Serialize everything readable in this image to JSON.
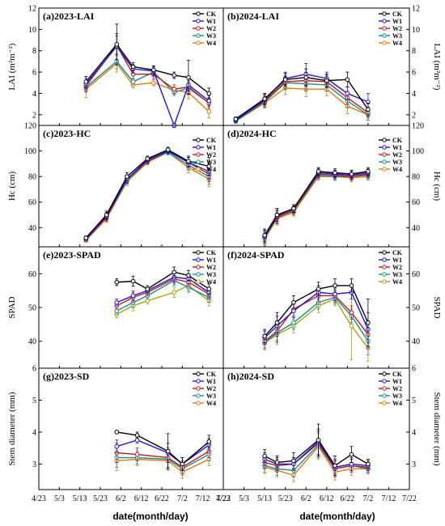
{
  "figure": {
    "xlabel": "date(month/day)",
    "x_ticks": [
      "4/23",
      "5/3",
      "5/13",
      "5/23",
      "6/2",
      "6/12",
      "6/22",
      "7/2",
      "7/12",
      "7/22"
    ]
  },
  "series_colors": {
    "CK": "#000000",
    "W1": "#1a14e0",
    "W2": "#c0191a",
    "W3": "#138e8e",
    "W4": "#e07b0c",
    "W4_spad": "#a6a60e"
  },
  "chart_data": [
    {
      "type": "line",
      "title": "(a)2023-LAI",
      "ylabel": "LAI (m²m⁻²)",
      "y_side": "left",
      "ylim": [
        1,
        12
      ],
      "yticks": [
        2,
        4,
        6,
        8,
        10,
        12
      ],
      "x": [
        "5/16",
        "5/31",
        "6/8",
        "6/18",
        "6/28",
        "7/5",
        "7/15"
      ],
      "series": [
        {
          "name": "CK",
          "values": [
            5.1,
            8.6,
            6.5,
            6.2,
            5.7,
            5.5,
            4.0
          ],
          "err": [
            0.5,
            1.9,
            0.4,
            0.4,
            0.3,
            1.6,
            0.5
          ]
        },
        {
          "name": "W1",
          "values": [
            4.9,
            8.4,
            6.3,
            6.1,
            1.0,
            4.8,
            3.3
          ],
          "err": [
            0.5,
            1.2,
            0.4,
            0.4,
            0.2,
            0.6,
            0.5
          ]
        },
        {
          "name": "W2",
          "values": [
            4.7,
            8.5,
            5.8,
            5.8,
            4.4,
            4.6,
            3.1
          ],
          "err": [
            0.5,
            0.9,
            0.4,
            0.4,
            0.4,
            0.6,
            0.5
          ]
        },
        {
          "name": "W3",
          "values": [
            4.6,
            7.0,
            5.1,
            6.0,
            4.1,
            4.5,
            3.1
          ],
          "err": [
            0.5,
            0.7,
            0.3,
            0.4,
            0.3,
            0.6,
            0.5
          ]
        },
        {
          "name": "W4",
          "values": [
            4.4,
            6.8,
            4.8,
            5.0,
            4.3,
            4.1,
            2.3
          ],
          "err": [
            0.8,
            0.8,
            0.3,
            0.3,
            0.3,
            0.6,
            0.6
          ]
        }
      ],
      "legend": "top-right"
    },
    {
      "type": "line",
      "title": "(b)2024-LAI",
      "ylabel": "LAI (m²m⁻²)",
      "y_side": "right",
      "ylim": [
        1,
        12
      ],
      "yticks": [
        2,
        4,
        6,
        8,
        10,
        12
      ],
      "x": [
        "4/29",
        "5/13",
        "5/23",
        "6/2",
        "6/12",
        "6/22",
        "7/2"
      ],
      "series": [
        {
          "name": "CK",
          "values": [
            1.6,
            3.5,
            5.3,
            5.5,
            5.2,
            5.3,
            2.5
          ],
          "err": [
            0.2,
            0.5,
            0.6,
            0.8,
            0.6,
            0.7,
            0.6
          ]
        },
        {
          "name": "W1",
          "values": [
            1.5,
            3.4,
            5.4,
            5.8,
            5.4,
            4.0,
            3.2
          ],
          "err": [
            0.2,
            0.5,
            0.6,
            1.0,
            0.6,
            0.6,
            0.8
          ]
        },
        {
          "name": "W2",
          "values": [
            1.5,
            3.3,
            5.1,
            5.2,
            5.1,
            3.6,
            2.2
          ],
          "err": [
            0.2,
            0.5,
            0.6,
            0.8,
            0.6,
            0.6,
            0.5
          ]
        },
        {
          "name": "W3",
          "values": [
            1.4,
            3.2,
            5.0,
            4.9,
            4.8,
            3.3,
            2.0
          ],
          "err": [
            0.2,
            0.5,
            0.6,
            0.7,
            0.6,
            0.6,
            0.5
          ]
        },
        {
          "name": "W4",
          "values": [
            1.4,
            3.1,
            4.5,
            4.4,
            4.4,
            2.8,
            2.0
          ],
          "err": [
            0.2,
            0.5,
            0.6,
            0.7,
            0.6,
            0.7,
            0.5
          ]
        }
      ],
      "legend": "top-right"
    },
    {
      "type": "line",
      "title": "(c)2023-HC",
      "ylabel": "Hc (cm)",
      "y_side": "left",
      "ylim": [
        25,
        120
      ],
      "yticks": [
        40,
        60,
        80,
        100,
        120
      ],
      "x": [
        "5/16",
        "5/26",
        "6/5",
        "6/15",
        "6/25",
        "7/5",
        "7/15"
      ],
      "series": [
        {
          "name": "CK",
          "values": [
            32,
            50,
            80,
            94,
            101,
            92,
            88
          ],
          "err": [
            1.5,
            3,
            3,
            2,
            2,
            4,
            7
          ]
        },
        {
          "name": "W1",
          "values": [
            31,
            49,
            78,
            93,
            100,
            91,
            84
          ],
          "err": [
            1.5,
            3,
            3,
            2,
            2,
            4,
            6
          ]
        },
        {
          "name": "W2",
          "values": [
            31,
            48,
            78,
            92,
            100,
            91,
            82
          ],
          "err": [
            1.5,
            3,
            3,
            2,
            2,
            4,
            6
          ]
        },
        {
          "name": "W3",
          "values": [
            31,
            48,
            77,
            92,
            99,
            89,
            80
          ],
          "err": [
            1.5,
            3,
            3,
            2,
            2,
            4,
            6
          ]
        },
        {
          "name": "W4",
          "values": [
            30,
            47,
            76,
            91,
            99,
            87,
            78
          ],
          "err": [
            1.5,
            3,
            3,
            2,
            2,
            4,
            6
          ]
        }
      ],
      "legend": "bottom-right"
    },
    {
      "type": "line",
      "title": "(d)2024-HC",
      "ylabel": "Hc (cm)",
      "y_side": "right",
      "ylim": [
        25,
        120
      ],
      "yticks": [
        40,
        60,
        80,
        100,
        120
      ],
      "x": [
        "5/13",
        "5/19",
        "5/27",
        "6/8",
        "6/16",
        "6/24",
        "7/2"
      ],
      "series": [
        {
          "name": "CK",
          "values": [
            34,
            50,
            55,
            84,
            83,
            82,
            84
          ],
          "err": [
            5,
            5,
            3,
            3,
            3,
            3,
            3
          ]
        },
        {
          "name": "W1",
          "values": [
            33,
            49,
            55,
            83,
            82,
            81,
            83
          ],
          "err": [
            5,
            5,
            3,
            3,
            3,
            3,
            3
          ]
        },
        {
          "name": "W2",
          "values": [
            33,
            48,
            54,
            82,
            81,
            80,
            82
          ],
          "err": [
            5,
            5,
            3,
            3,
            3,
            3,
            3
          ]
        },
        {
          "name": "W3",
          "values": [
            32,
            48,
            53,
            81,
            80,
            80,
            81
          ],
          "err": [
            5,
            5,
            3,
            3,
            3,
            3,
            3
          ]
        },
        {
          "name": "W4",
          "values": [
            31,
            47,
            52,
            80,
            80,
            79,
            80
          ],
          "err": [
            5,
            5,
            3,
            3,
            3,
            3,
            3
          ]
        }
      ],
      "legend": "bottom-right"
    },
    {
      "type": "line",
      "title": "(e)2023-SPAD",
      "ylabel": "SPAD",
      "y_side": "left",
      "ylim": [
        32,
        68
      ],
      "yticks": [
        40,
        50,
        60
      ],
      "x": [
        "5/31",
        "6/8",
        "6/15",
        "6/28",
        "7/5",
        "7/15"
      ],
      "series": [
        {
          "name": "CK",
          "values": [
            57.5,
            57.8,
            55.5,
            60.5,
            59.5,
            55.5
          ],
          "err": [
            1,
            1.5,
            1,
            1.5,
            1.5,
            1.5
          ]
        },
        {
          "name": "W1",
          "values": [
            51.5,
            53.5,
            55.0,
            59.0,
            58.5,
            54.5
          ],
          "err": [
            1,
            1.5,
            1,
            1.5,
            1.5,
            1.5
          ]
        },
        {
          "name": "W2",
          "values": [
            50.5,
            53.0,
            54.5,
            58.5,
            57.5,
            54.0
          ],
          "err": [
            1,
            1.5,
            1,
            1.5,
            1.5,
            1.5
          ]
        },
        {
          "name": "W3",
          "values": [
            49.0,
            51.5,
            53.5,
            58.0,
            56.0,
            53.0
          ],
          "err": [
            1,
            1.5,
            1,
            1.5,
            1.5,
            1.5
          ]
        },
        {
          "name": "W4",
          "values": [
            48.0,
            50.5,
            52.0,
            54.5,
            56.5,
            52.0
          ],
          "err": [
            1,
            1.5,
            1,
            1.5,
            1.5,
            1.5
          ]
        }
      ],
      "legend": "top-right"
    },
    {
      "type": "line",
      "title": "(f)2024-SPAD",
      "ylabel": "SPAD",
      "y_side": "right",
      "ylim": [
        32,
        68
      ],
      "yticks": [
        40,
        50,
        60
      ],
      "x": [
        "5/13",
        "5/19",
        "5/27",
        "6/8",
        "6/16",
        "6/24",
        "7/2"
      ],
      "series": [
        {
          "name": "CK",
          "values": [
            41.5,
            45.5,
            51.5,
            55.5,
            56.5,
            56.5,
            45.5
          ],
          "err": [
            2,
            3,
            2,
            2,
            2,
            2,
            7
          ]
        },
        {
          "name": "W1",
          "values": [
            41.0,
            44.5,
            49.0,
            54.5,
            54.0,
            54.5,
            43.5
          ],
          "err": [
            2,
            3,
            2,
            2,
            2,
            2,
            5
          ]
        },
        {
          "name": "W2",
          "values": [
            40.0,
            43.0,
            49.5,
            53.5,
            53.5,
            48.5,
            42.0
          ],
          "err": [
            2,
            3,
            2,
            2,
            2,
            2,
            4
          ]
        },
        {
          "name": "W3",
          "values": [
            39.5,
            42.5,
            45.5,
            51.5,
            53.0,
            47.5,
            40.0
          ],
          "err": [
            2,
            3,
            2,
            2,
            2,
            2,
            4
          ]
        },
        {
          "name": "W4",
          "values": [
            39.5,
            42.0,
            44.5,
            50.5,
            52.5,
            44.5,
            38.0
          ],
          "err": [
            2,
            3,
            2,
            2,
            2,
            10,
            4
          ]
        }
      ],
      "legend": "top-right"
    },
    {
      "type": "line",
      "title": "(g)2023-SD",
      "ylabel": "Stem diameter (mm)",
      "y_side": "left",
      "ylim": [
        2.2,
        6
      ],
      "yticks": [
        3,
        4,
        5,
        6
      ],
      "x": [
        "5/31",
        "6/10",
        "6/25",
        "7/2",
        "7/15"
      ],
      "series": [
        {
          "name": "CK",
          "values": [
            4.0,
            3.9,
            3.4,
            3.0,
            3.7
          ],
          "err": [
            0.05,
            0.1,
            0.55,
            0.2,
            0.2
          ]
        },
        {
          "name": "W1",
          "values": [
            3.55,
            3.75,
            3.35,
            3.0,
            3.6
          ],
          "err": [
            0.2,
            0.1,
            0.3,
            0.2,
            0.2
          ]
        },
        {
          "name": "W2",
          "values": [
            3.35,
            3.3,
            3.2,
            2.9,
            3.4
          ],
          "err": [
            0.3,
            0.2,
            0.3,
            0.2,
            0.2
          ]
        },
        {
          "name": "W3",
          "values": [
            3.2,
            3.2,
            3.15,
            2.85,
            3.3
          ],
          "err": [
            0.3,
            0.2,
            0.3,
            0.2,
            0.2
          ]
        },
        {
          "name": "W4",
          "values": [
            3.1,
            3.15,
            3.1,
            2.75,
            3.15
          ],
          "err": [
            0.3,
            0.2,
            0.3,
            0.2,
            0.2
          ]
        }
      ],
      "legend": "top-right"
    },
    {
      "type": "line",
      "title": "(h)2024-SD",
      "ylabel": "Stem diameter (mm)",
      "y_side": "right",
      "ylim": [
        2.2,
        6
      ],
      "yticks": [
        3,
        4,
        5,
        6
      ],
      "x": [
        "5/13",
        "5/19",
        "5/27",
        "6/8",
        "6/16",
        "6/24",
        "7/2"
      ],
      "series": [
        {
          "name": "CK",
          "values": [
            3.25,
            3.05,
            3.1,
            3.75,
            2.95,
            3.3,
            3.0
          ],
          "err": [
            0.2,
            0.2,
            0.25,
            0.5,
            0.3,
            0.25,
            0.15
          ]
        },
        {
          "name": "W1",
          "values": [
            3.15,
            3.0,
            3.0,
            3.7,
            2.9,
            3.0,
            2.95
          ],
          "err": [
            0.2,
            0.2,
            0.2,
            0.4,
            0.25,
            0.2,
            0.15
          ]
        },
        {
          "name": "W2",
          "values": [
            3.05,
            2.95,
            3.0,
            3.65,
            2.85,
            2.95,
            2.9
          ],
          "err": [
            0.2,
            0.2,
            0.2,
            0.4,
            0.25,
            0.2,
            0.15
          ]
        },
        {
          "name": "W3",
          "values": [
            2.95,
            2.85,
            2.8,
            3.6,
            2.85,
            2.95,
            2.85
          ],
          "err": [
            0.2,
            0.2,
            0.2,
            0.4,
            0.25,
            0.2,
            0.15
          ]
        },
        {
          "name": "W4",
          "values": [
            2.9,
            2.8,
            2.65,
            3.55,
            2.75,
            2.85,
            2.85
          ],
          "err": [
            0.2,
            0.2,
            0.2,
            0.4,
            0.25,
            0.2,
            0.15
          ]
        }
      ],
      "legend": "top-right"
    }
  ]
}
